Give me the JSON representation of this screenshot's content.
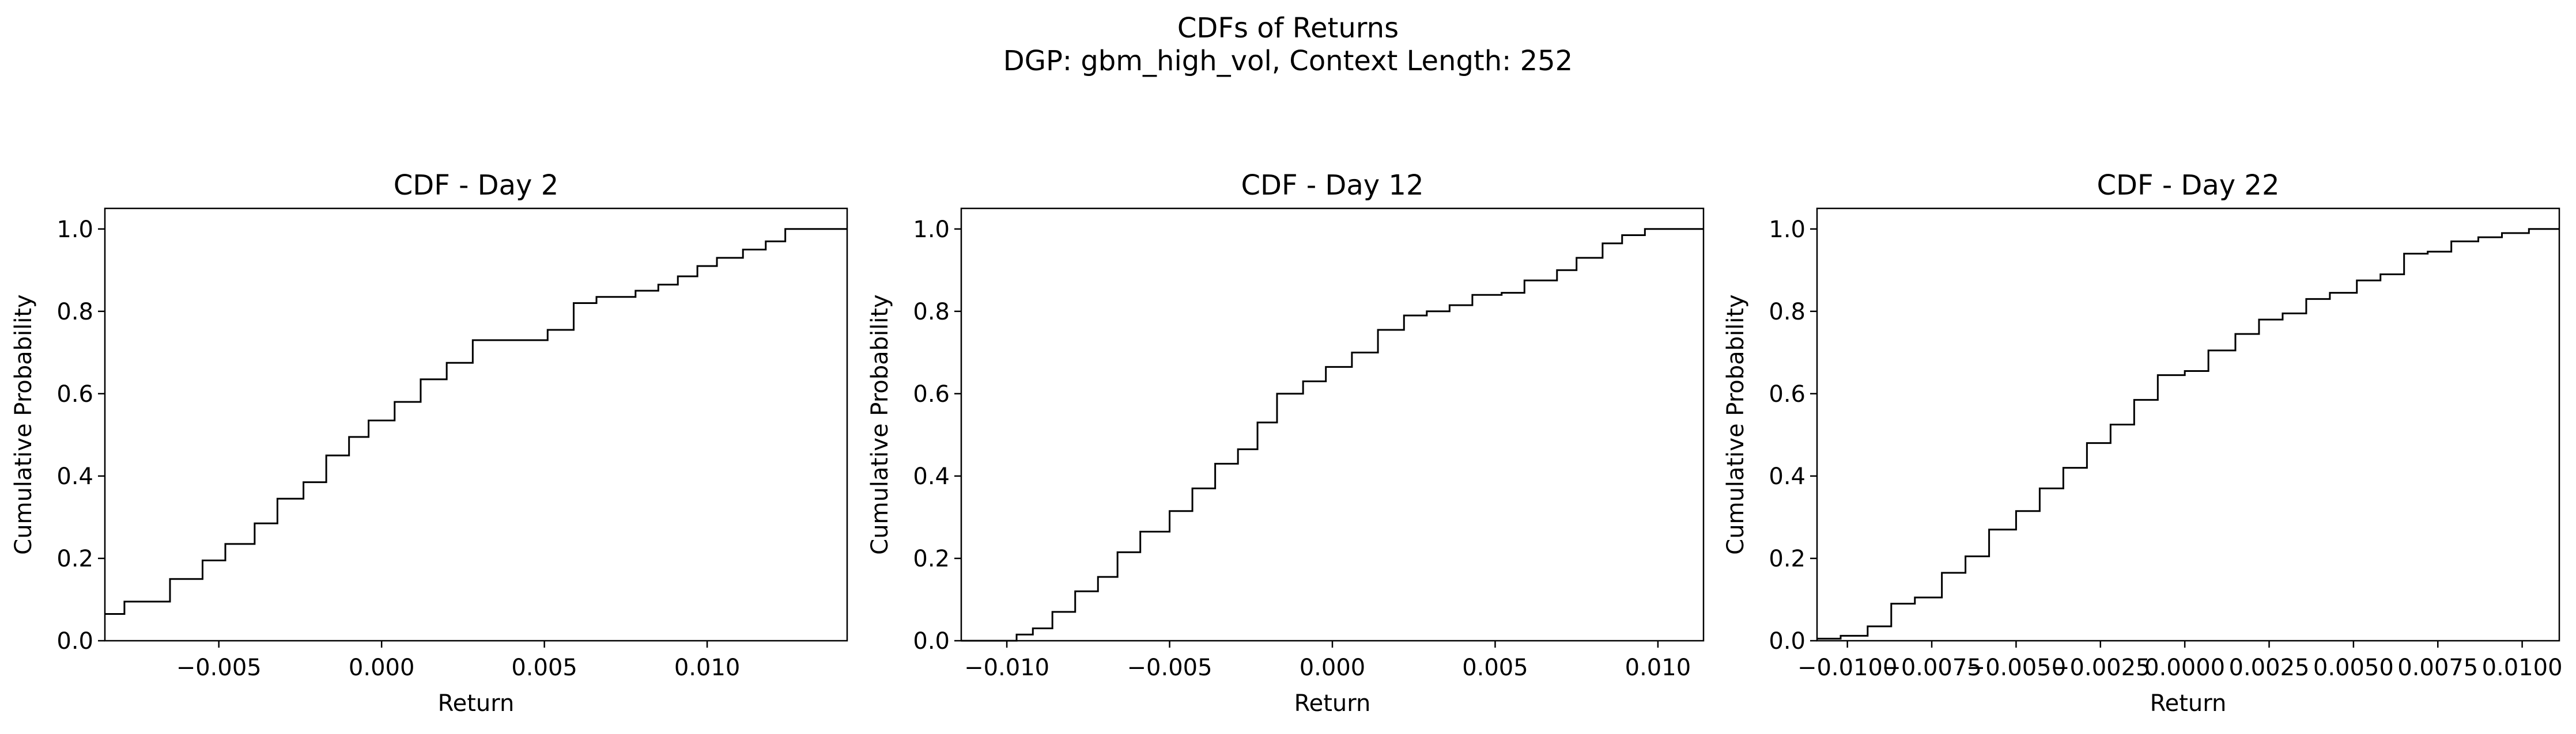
{
  "figure": {
    "title_line1": "CDFs of Returns",
    "title_line2": "DGP: gbm_high_vol, Context Length: 252"
  },
  "chart_data": [
    {
      "type": "line",
      "step": true,
      "title": "CDF - Day 2",
      "xlabel": "Return",
      "ylabel": "Cumulative Probability",
      "xlim": [
        -0.0085,
        0.0143
      ],
      "ylim": [
        0.0,
        1.05
      ],
      "xticks": [
        -0.005,
        0.0,
        0.005,
        0.01
      ],
      "xtick_labels": [
        "−0.005",
        "0.000",
        "0.005",
        "0.010"
      ],
      "yticks": [
        0.0,
        0.2,
        0.4,
        0.6,
        0.8,
        1.0
      ],
      "ytick_labels": [
        "0.0",
        "0.2",
        "0.4",
        "0.6",
        "0.8",
        "1.0"
      ],
      "grid": false,
      "line_color": "#000000",
      "series": [
        {
          "x": [
            -0.0085,
            -0.0079,
            -0.0065,
            -0.0055,
            -0.0048,
            -0.0039,
            -0.0032,
            -0.0024,
            -0.0017,
            -0.001,
            -0.0004,
            0.0004,
            0.0012,
            0.002,
            0.0028,
            0.0051,
            0.0059,
            0.0066,
            0.0078,
            0.0085,
            0.0091,
            0.0097,
            0.0103,
            0.0111,
            0.0118,
            0.0124,
            0.0132,
            0.0137,
            0.0143
          ],
          "y": [
            0.065,
            0.095,
            0.15,
            0.195,
            0.235,
            0.285,
            0.345,
            0.385,
            0.45,
            0.495,
            0.535,
            0.58,
            0.635,
            0.675,
            0.73,
            0.755,
            0.82,
            0.835,
            0.85,
            0.865,
            0.885,
            0.91,
            0.93,
            0.95,
            0.97,
            1.0,
            1.0,
            1.0,
            1.0
          ]
        }
      ]
    },
    {
      "type": "line",
      "step": true,
      "title": "CDF - Day 12",
      "xlabel": "Return",
      "ylabel": "Cumulative Probability",
      "xlim": [
        -0.0114,
        0.0114
      ],
      "ylim": [
        0.0,
        1.05
      ],
      "xticks": [
        -0.01,
        -0.005,
        0.0,
        0.005,
        0.01
      ],
      "xtick_labels": [
        "−0.010",
        "−0.005",
        "0.000",
        "0.005",
        "0.010"
      ],
      "yticks": [
        0.0,
        0.2,
        0.4,
        0.6,
        0.8,
        1.0
      ],
      "ytick_labels": [
        "0.0",
        "0.2",
        "0.4",
        "0.6",
        "0.8",
        "1.0"
      ],
      "grid": false,
      "line_color": "#000000",
      "series": [
        {
          "x": [
            -0.0114,
            -0.0097,
            -0.0092,
            -0.0086,
            -0.0079,
            -0.0072,
            -0.0066,
            -0.0059,
            -0.005,
            -0.0043,
            -0.0036,
            -0.0029,
            -0.0023,
            -0.0017,
            -0.0009,
            -0.0002,
            0.0006,
            0.0014,
            0.0022,
            0.0029,
            0.0036,
            0.0043,
            0.0052,
            0.0059,
            0.0069,
            0.0075,
            0.0083,
            0.0089,
            0.0096,
            0.0104,
            0.0114
          ],
          "y": [
            0.0,
            0.015,
            0.03,
            0.07,
            0.12,
            0.155,
            0.215,
            0.265,
            0.315,
            0.37,
            0.43,
            0.465,
            0.53,
            0.6,
            0.63,
            0.665,
            0.7,
            0.755,
            0.79,
            0.8,
            0.815,
            0.84,
            0.845,
            0.875,
            0.9,
            0.93,
            0.965,
            0.985,
            1.0,
            1.0,
            1.0
          ]
        }
      ]
    },
    {
      "type": "line",
      "step": true,
      "title": "CDF - Day 22",
      "xlabel": "Return",
      "ylabel": "Cumulative Probability",
      "xlim": [
        -0.0109,
        0.0111
      ],
      "ylim": [
        0.0,
        1.05
      ],
      "xticks": [
        -0.01,
        -0.0075,
        -0.005,
        -0.0025,
        0.0,
        0.0025,
        0.005,
        0.0075,
        0.01
      ],
      "xtick_labels": [
        "−0.0100",
        "−0.0075",
        "−0.0050",
        "−0.0025",
        "0.0000",
        "0.0025",
        "0.0050",
        "0.0075",
        "0.0100"
      ],
      "yticks": [
        0.0,
        0.2,
        0.4,
        0.6,
        0.8,
        1.0
      ],
      "ytick_labels": [
        "0.0",
        "0.2",
        "0.4",
        "0.6",
        "0.8",
        "1.0"
      ],
      "grid": false,
      "line_color": "#000000",
      "series": [
        {
          "x": [
            -0.0109,
            -0.0102,
            -0.0094,
            -0.0087,
            -0.008,
            -0.0072,
            -0.0065,
            -0.0058,
            -0.005,
            -0.0043,
            -0.0036,
            -0.0029,
            -0.0022,
            -0.0015,
            -0.0008,
            0.0,
            0.0007,
            0.0015,
            0.0022,
            0.0029,
            0.0036,
            0.0043,
            0.0051,
            0.0058,
            0.0065,
            0.0072,
            0.0079,
            0.0087,
            0.0094,
            0.0102,
            0.0111
          ],
          "y": [
            0.005,
            0.012,
            0.035,
            0.09,
            0.105,
            0.165,
            0.205,
            0.27,
            0.315,
            0.37,
            0.42,
            0.48,
            0.525,
            0.585,
            0.645,
            0.655,
            0.705,
            0.745,
            0.78,
            0.795,
            0.83,
            0.845,
            0.875,
            0.89,
            0.94,
            0.945,
            0.97,
            0.98,
            0.99,
            1.0,
            1.0
          ]
        }
      ]
    }
  ]
}
